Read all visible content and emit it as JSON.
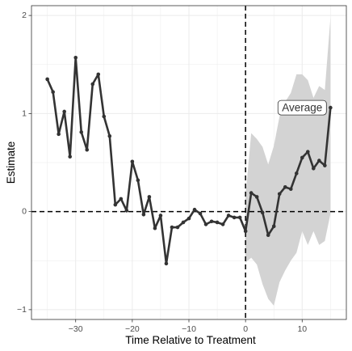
{
  "chart_data": {
    "type": "line",
    "xlabel": "Time Relative to Treatment",
    "ylabel": "Estimate",
    "xlim": [
      -37.8,
      17.8
    ],
    "ylim": [
      -1.1,
      2.1
    ],
    "x_ticks": [
      -30,
      -20,
      -10,
      0,
      10
    ],
    "y_ticks": [
      -1,
      0,
      1,
      2
    ],
    "x_tick_labels": [
      "−30",
      "−20",
      "−10",
      "0",
      "10"
    ],
    "y_tick_labels": [
      "−1",
      "0",
      "1",
      "2"
    ],
    "grid": true,
    "reference_lines": [
      {
        "axis": "x",
        "value": 0,
        "style": "dashed"
      },
      {
        "axis": "y",
        "value": 0,
        "style": "dashed"
      }
    ],
    "annotation": {
      "text": "Average",
      "x": 10,
      "y": 1.06
    },
    "colors": {
      "line": "#333333",
      "ribbon": "#d3d3d3",
      "grid": "#ebebeb",
      "axis_text": "#4d4d4d"
    },
    "series": [
      {
        "x": [
          -35,
          -34,
          -33,
          -32,
          -31,
          -30,
          -29,
          -28,
          -27,
          -26,
          -25,
          -24,
          -23,
          -22,
          -21,
          -20,
          -19,
          -18,
          -17,
          -16,
          -15,
          -14,
          -13,
          -12,
          -11,
          -10,
          -9,
          -8,
          -7,
          -6,
          -5,
          -4,
          -3,
          -2,
          -1,
          0,
          1,
          2,
          3,
          4,
          5,
          6,
          7,
          8,
          9,
          10,
          11,
          12,
          13,
          14,
          15
        ],
        "y": [
          1.35,
          1.22,
          0.79,
          1.02,
          0.56,
          1.57,
          0.81,
          0.63,
          1.3,
          1.4,
          0.97,
          0.77,
          0.07,
          0.13,
          0.01,
          0.51,
          0.32,
          -0.03,
          0.15,
          -0.17,
          -0.04,
          -0.53,
          -0.16,
          -0.16,
          -0.11,
          -0.07,
          0.02,
          -0.02,
          -0.13,
          -0.1,
          -0.11,
          -0.13,
          -0.04,
          -0.06,
          -0.06,
          -0.2,
          0.19,
          0.15,
          -0.01,
          -0.24,
          -0.15,
          0.18,
          0.25,
          0.23,
          0.39,
          0.55,
          0.61,
          0.44,
          0.52,
          0.47,
          1.06
        ]
      }
    ],
    "ribbon": {
      "x": [
        0,
        1,
        2,
        3,
        4,
        5,
        6,
        7,
        8,
        9,
        10,
        11,
        12,
        13,
        14,
        15
      ],
      "lower": [
        -0.52,
        -0.47,
        -0.54,
        -0.74,
        -0.89,
        -0.96,
        -0.72,
        -0.6,
        -0.5,
        -0.42,
        -0.2,
        -0.34,
        -0.2,
        -0.34,
        -0.3,
        -0.02
      ],
      "upper": [
        0.16,
        0.8,
        0.74,
        0.66,
        0.48,
        0.67,
        0.97,
        1.12,
        1.21,
        1.4,
        1.4,
        1.34,
        1.16,
        1.28,
        1.24,
        1.98
      ]
    }
  }
}
